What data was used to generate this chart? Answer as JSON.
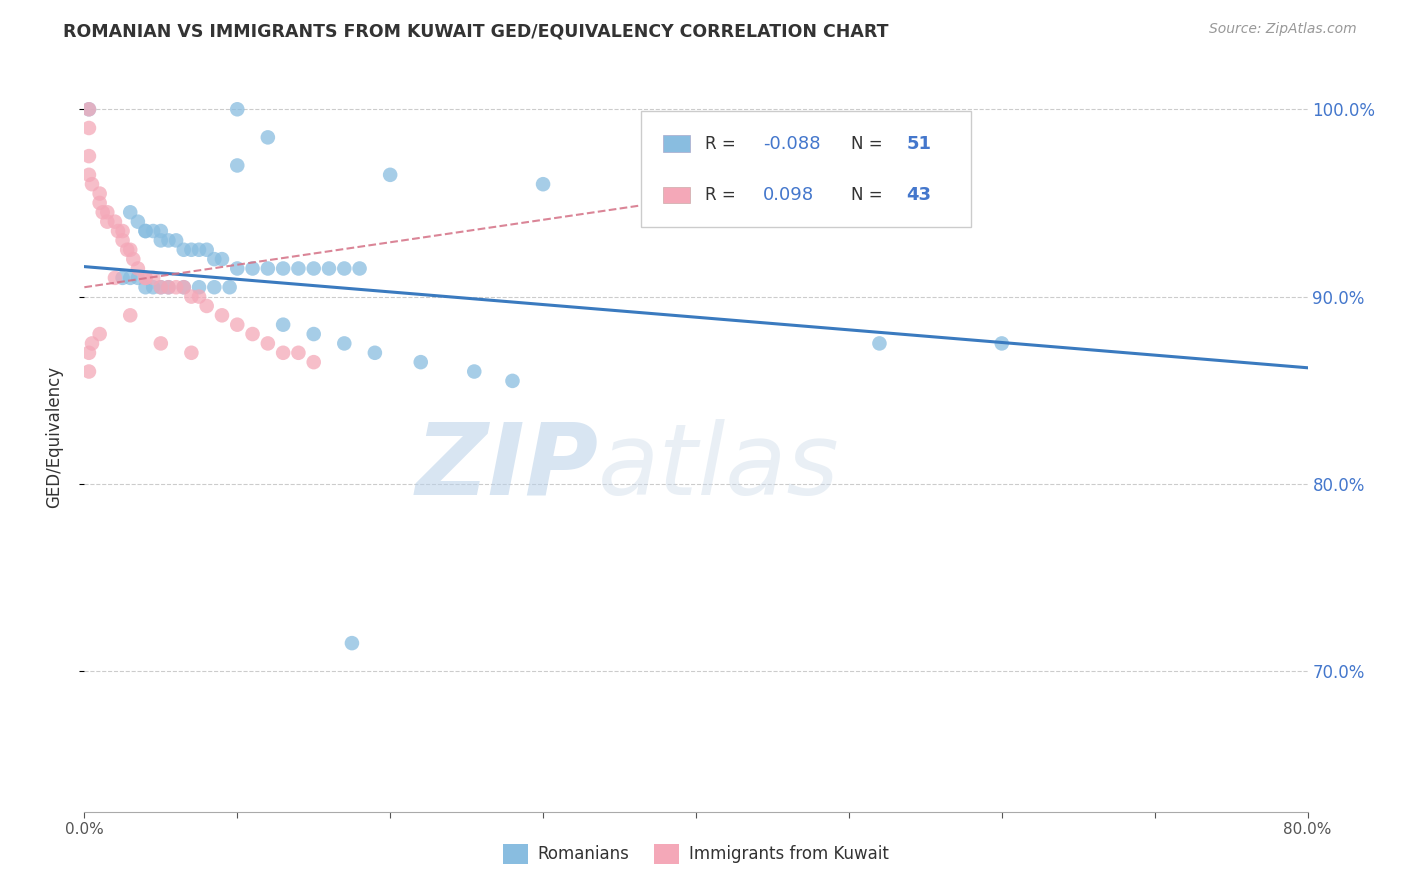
{
  "title": "ROMANIAN VS IMMIGRANTS FROM KUWAIT GED/EQUIVALENCY CORRELATION CHART",
  "source": "Source: ZipAtlas.com",
  "ylabel": "GED/Equivalency",
  "watermark_zip": "ZIP",
  "watermark_atlas": "atlas",
  "blue_R": -0.088,
  "blue_N": 51,
  "pink_R": 0.098,
  "pink_N": 43,
  "blue_color": "#89bde0",
  "pink_color": "#f4a8b8",
  "blue_line_color": "#3a7abf",
  "pink_line_color": "#d47085",
  "ytick_labels": [
    "100.0%",
    "90.0%",
    "80.0%",
    "70.0%"
  ],
  "ytick_values": [
    1.0,
    0.9,
    0.8,
    0.7
  ],
  "xmin": 0.0,
  "xmax": 0.8,
  "ymin": 0.625,
  "ymax": 1.025,
  "blue_scatter_x": [
    0.003,
    0.1,
    0.12,
    0.1,
    0.2,
    0.3,
    0.03,
    0.035,
    0.04,
    0.04,
    0.045,
    0.05,
    0.05,
    0.055,
    0.06,
    0.065,
    0.07,
    0.075,
    0.08,
    0.085,
    0.09,
    0.1,
    0.11,
    0.12,
    0.13,
    0.14,
    0.15,
    0.16,
    0.17,
    0.18,
    0.025,
    0.03,
    0.035,
    0.04,
    0.045,
    0.05,
    0.055,
    0.065,
    0.075,
    0.085,
    0.095,
    0.13,
    0.15,
    0.17,
    0.19,
    0.22,
    0.255,
    0.28,
    0.6,
    0.175,
    0.52
  ],
  "blue_scatter_y": [
    1.0,
    1.0,
    0.985,
    0.97,
    0.965,
    0.96,
    0.945,
    0.94,
    0.935,
    0.935,
    0.935,
    0.935,
    0.93,
    0.93,
    0.93,
    0.925,
    0.925,
    0.925,
    0.925,
    0.92,
    0.92,
    0.915,
    0.915,
    0.915,
    0.915,
    0.915,
    0.915,
    0.915,
    0.915,
    0.915,
    0.91,
    0.91,
    0.91,
    0.905,
    0.905,
    0.905,
    0.905,
    0.905,
    0.905,
    0.905,
    0.905,
    0.885,
    0.88,
    0.875,
    0.87,
    0.865,
    0.86,
    0.855,
    0.875,
    0.715,
    0.875
  ],
  "pink_scatter_x": [
    0.003,
    0.003,
    0.003,
    0.003,
    0.005,
    0.01,
    0.01,
    0.012,
    0.015,
    0.015,
    0.02,
    0.022,
    0.025,
    0.025,
    0.028,
    0.03,
    0.032,
    0.035,
    0.04,
    0.04,
    0.045,
    0.05,
    0.055,
    0.06,
    0.065,
    0.07,
    0.075,
    0.08,
    0.09,
    0.1,
    0.11,
    0.12,
    0.13,
    0.14,
    0.15,
    0.003,
    0.003,
    0.005,
    0.01,
    0.02,
    0.03,
    0.05,
    0.07
  ],
  "pink_scatter_y": [
    1.0,
    0.99,
    0.975,
    0.965,
    0.96,
    0.955,
    0.95,
    0.945,
    0.945,
    0.94,
    0.94,
    0.935,
    0.935,
    0.93,
    0.925,
    0.925,
    0.92,
    0.915,
    0.91,
    0.91,
    0.91,
    0.905,
    0.905,
    0.905,
    0.905,
    0.9,
    0.9,
    0.895,
    0.89,
    0.885,
    0.88,
    0.875,
    0.87,
    0.87,
    0.865,
    0.87,
    0.86,
    0.875,
    0.88,
    0.91,
    0.89,
    0.875,
    0.87
  ],
  "blue_trend_x": [
    0.0,
    0.8
  ],
  "blue_trend_y": [
    0.916,
    0.862
  ],
  "pink_trend_x": [
    0.0,
    0.5
  ],
  "pink_trend_y": [
    0.905,
    0.965
  ]
}
